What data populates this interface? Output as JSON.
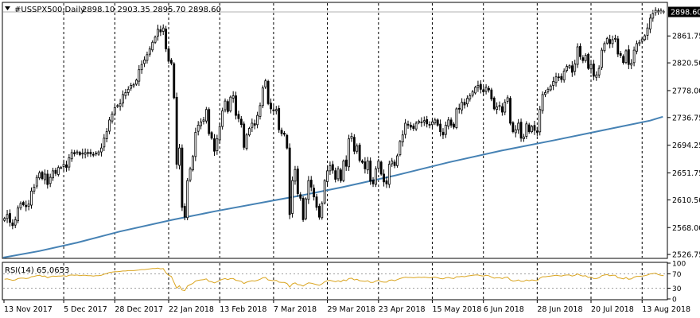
{
  "header": {
    "symbol": "#USSPX500,Daily",
    "ohlc": "2898.10 2903.35 2895.70 2898.60"
  },
  "rsi_header": {
    "label": "RSI(14) 65.0653"
  },
  "colors": {
    "background": "#ffffff",
    "candle_body": "#000000",
    "ma_line": "#4682b4",
    "rsi_line": "#daa520",
    "grid": "#000000",
    "price_tag_bg": "#000000",
    "price_tag_text": "#ffffff"
  },
  "chart_data": [
    {
      "type": "candlestick",
      "title": "#USSPX500,Daily",
      "ohlc_last": {
        "open": 2898.1,
        "high": 2903.35,
        "low": 2895.7,
        "close": 2898.6
      },
      "current_price_label": "2898.60",
      "y_ticks": [
        "2861.75",
        "2820.50",
        "2778.00",
        "2736.75",
        "2694.25",
        "2651.75",
        "2610.50",
        "2568.00",
        "2526.75"
      ],
      "y_tick_values": [
        2861.75,
        2820.5,
        2778.0,
        2736.75,
        2694.25,
        2651.75,
        2610.5,
        2568.0,
        2526.75
      ],
      "ylim": [
        2522,
        2912
      ],
      "x_ticks": [
        "13 Nov 2017",
        "5 Dec 2017",
        "28 Dec 2017",
        "22 Jan 2018",
        "13 Feb 2018",
        "7 Mar 2018",
        "29 Mar 2018",
        "23 Apr 2018",
        "15 May 2018",
        "6 Jun 2018",
        "28 Jun 2018",
        "20 Jul 2018",
        "13 Aug 2018"
      ],
      "grid": "vertical dashed",
      "close_series": [
        2582,
        2588,
        2576,
        2571,
        2580,
        2598,
        2605,
        2603,
        2600,
        2604,
        2624,
        2630,
        2645,
        2652,
        2643,
        2650,
        2634,
        2645,
        2655,
        2651,
        2660,
        2660,
        2665,
        2660,
        2675,
        2683,
        2681,
        2684,
        2680,
        2682,
        2683,
        2682,
        2681,
        2680,
        2682,
        2684,
        2690,
        2705,
        2715,
        2733,
        2742,
        2752,
        2755,
        2758,
        2772,
        2775,
        2780,
        2786,
        2787,
        2794,
        2810,
        2818,
        2825,
        2833,
        2842,
        2852,
        2860,
        2872,
        2868,
        2874,
        2842,
        2823,
        2820,
        2767,
        2665,
        2690,
        2599,
        2584,
        2640,
        2658,
        2677,
        2714,
        2725,
        2730,
        2733,
        2749,
        2712,
        2705,
        2685,
        2704,
        2723,
        2747,
        2762,
        2746,
        2768,
        2770,
        2740,
        2735,
        2726,
        2691,
        2710,
        2720,
        2728,
        2725,
        2740,
        2755,
        2782,
        2793,
        2758,
        2750,
        2747,
        2749,
        2718,
        2712,
        2711,
        2690,
        2588,
        2640,
        2657,
        2620,
        2613,
        2580,
        2612,
        2640,
        2630,
        2615,
        2599,
        2584,
        2605,
        2640,
        2655,
        2663,
        2656,
        2642,
        2658,
        2640,
        2670,
        2662,
        2704,
        2708,
        2685,
        2693,
        2671,
        2668,
        2658,
        2670,
        2639,
        2635,
        2658,
        2670,
        2650,
        2638,
        2635,
        2665,
        2670,
        2663,
        2678,
        2700,
        2710,
        2728,
        2725,
        2722,
        2720,
        2728,
        2731,
        2730,
        2732,
        2727,
        2725,
        2730,
        2733,
        2725,
        2715,
        2710,
        2725,
        2733,
        2725,
        2722,
        2750,
        2750,
        2760,
        2756,
        2766,
        2770,
        2776,
        2783,
        2786,
        2780,
        2776,
        2783,
        2779,
        2765,
        2750,
        2753,
        2755,
        2745,
        2760,
        2767,
        2728,
        2715,
        2718,
        2728,
        2705,
        2707,
        2727,
        2715,
        2723,
        2717,
        2714,
        2749,
        2772,
        2775,
        2780,
        2785,
        2792,
        2799,
        2798,
        2795,
        2808,
        2815,
        2816,
        2806,
        2819,
        2845,
        2830,
        2824,
        2832,
        2812,
        2818,
        2800,
        2802,
        2812,
        2840,
        2850,
        2858,
        2850,
        2856,
        2858,
        2834,
        2832,
        2821,
        2839,
        2818,
        2820,
        2840,
        2850,
        2852,
        2857,
        2862,
        2874,
        2889,
        2896,
        2901,
        2898,
        2901,
        2898
      ],
      "ma_series_label": "",
      "ma_points": [
        [
          0,
          2522
        ],
        [
          17,
          2532
        ],
        [
          35,
          2545
        ],
        [
          55,
          2562
        ],
        [
          80,
          2580
        ],
        [
          100,
          2593
        ],
        [
          125,
          2608
        ],
        [
          140,
          2617
        ],
        [
          160,
          2630
        ],
        [
          185,
          2648
        ],
        [
          210,
          2668
        ],
        [
          235,
          2686
        ],
        [
          260,
          2702
        ],
        [
          290,
          2722
        ],
        [
          305,
          2732
        ],
        [
          311,
          2738
        ]
      ]
    },
    {
      "type": "line",
      "title": "RSI(14) 65.0653",
      "y_ticks": [
        "100",
        "70",
        "30",
        "0"
      ],
      "ylim": [
        0,
        100
      ],
      "levels": [
        70,
        30
      ],
      "values": [
        55,
        56,
        54,
        52,
        53,
        57,
        58,
        58,
        57,
        58,
        62,
        63,
        65,
        66,
        63,
        64,
        59,
        62,
        64,
        63,
        64,
        64,
        65,
        63,
        66,
        67,
        66,
        67,
        65,
        66,
        66,
        65,
        65,
        64,
        65,
        65,
        66,
        69,
        71,
        74,
        75,
        76,
        76,
        77,
        78,
        78,
        79,
        79,
        79,
        80,
        81,
        82,
        82,
        83,
        84,
        85,
        85,
        86,
        84,
        85,
        73,
        66,
        63,
        46,
        30,
        37,
        25,
        23,
        36,
        40,
        43,
        50,
        52,
        53,
        54,
        56,
        49,
        48,
        45,
        48,
        52,
        55,
        57,
        54,
        57,
        57,
        52,
        51,
        49,
        43,
        47,
        49,
        51,
        50,
        52,
        55,
        59,
        60,
        53,
        52,
        51,
        52,
        47,
        46,
        46,
        43,
        33,
        42,
        45,
        40,
        39,
        36,
        41,
        45,
        44,
        42,
        40,
        38,
        42,
        48,
        51,
        52,
        50,
        48,
        51,
        48,
        53,
        51,
        57,
        58,
        53,
        55,
        51,
        50,
        49,
        51,
        46,
        46,
        50,
        52,
        48,
        47,
        47,
        52,
        53,
        51,
        54,
        57,
        59,
        61,
        60,
        60,
        59,
        60,
        61,
        60,
        61,
        60,
        59,
        60,
        61,
        59,
        57,
        56,
        59,
        60,
        58,
        57,
        62,
        62,
        63,
        62,
        64,
        65,
        66,
        67,
        67,
        65,
        64,
        66,
        65,
        61,
        58,
        59,
        59,
        57,
        60,
        61,
        53,
        50,
        51,
        53,
        49,
        49,
        53,
        51,
        53,
        52,
        51,
        58,
        62,
        62,
        63,
        64,
        65,
        66,
        65,
        64,
        66,
        67,
        67,
        64,
        66,
        70,
        66,
        64,
        65,
        60,
        61,
        57,
        57,
        59,
        65,
        67,
        68,
        65,
        66,
        66,
        59,
        58,
        56,
        60,
        55,
        56,
        61,
        63,
        63,
        64,
        65,
        67,
        70,
        71,
        72,
        68,
        66,
        65
      ]
    }
  ]
}
